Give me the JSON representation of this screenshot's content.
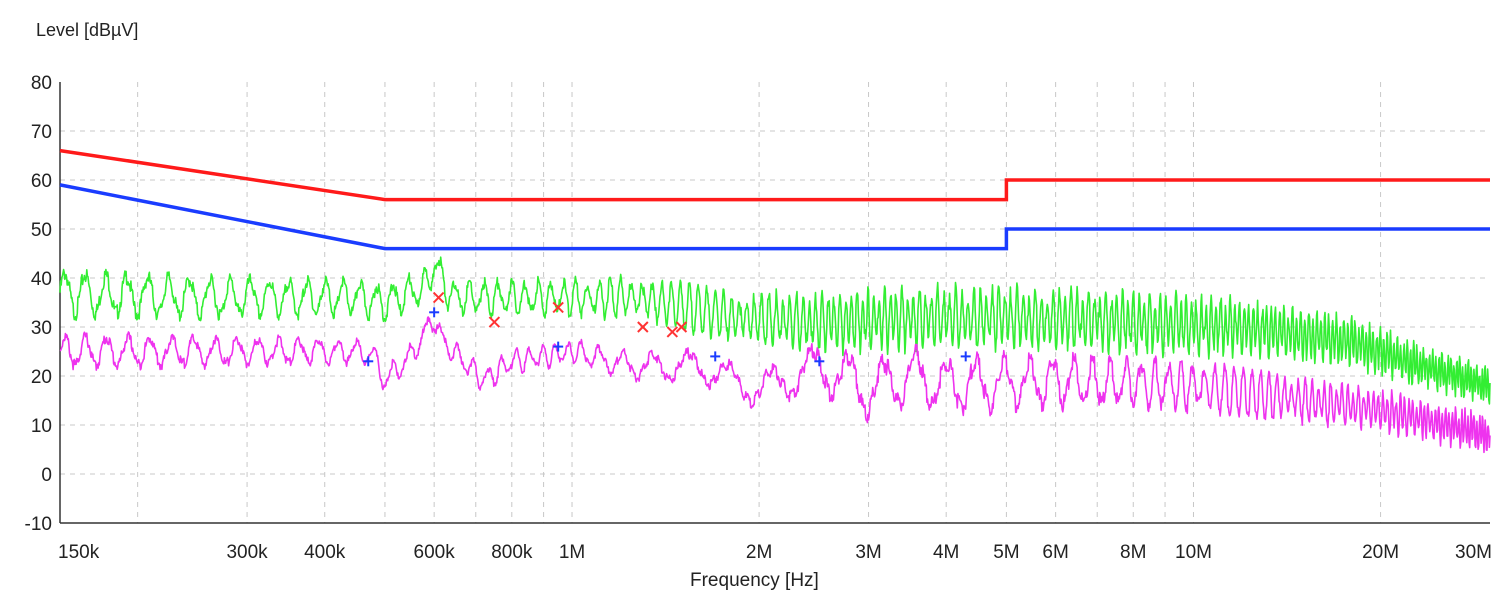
{
  "chart_data": {
    "type": "line",
    "ylabel": "Level [dBµV]",
    "xlabel": "Frequency [Hz]",
    "x_scale": "log",
    "xlim_hz": [
      150000,
      30000000
    ],
    "ylim": [
      -10,
      80
    ],
    "grid": true,
    "y_ticks": [
      80,
      70,
      60,
      50,
      40,
      30,
      20,
      10,
      0,
      -10
    ],
    "x_ticks": [
      {
        "hz": 150000,
        "label": "150k"
      },
      {
        "hz": 300000,
        "label": "300k"
      },
      {
        "hz": 400000,
        "label": "400k"
      },
      {
        "hz": 600000,
        "label": "600k"
      },
      {
        "hz": 800000,
        "label": "800k"
      },
      {
        "hz": 1000000,
        "label": "1M"
      },
      {
        "hz": 2000000,
        "label": "2M"
      },
      {
        "hz": 3000000,
        "label": "3M"
      },
      {
        "hz": 4000000,
        "label": "4M"
      },
      {
        "hz": 5000000,
        "label": "5M"
      },
      {
        "hz": 6000000,
        "label": "6M"
      },
      {
        "hz": 8000000,
        "label": "8M"
      },
      {
        "hz": 10000000,
        "label": "10M"
      },
      {
        "hz": 20000000,
        "label": "20M"
      },
      {
        "hz": 30000000,
        "label": "30M"
      }
    ],
    "x_minor_gridlines_hz": [
      200000,
      500000,
      700000,
      900000,
      7000000,
      9000000
    ],
    "series": [
      {
        "color": "#ff1a1a",
        "style": "limit",
        "points": [
          [
            150000,
            66
          ],
          [
            500000,
            56
          ],
          [
            5000000,
            56
          ],
          [
            5000000,
            60
          ],
          [
            30000000,
            60
          ]
        ]
      },
      {
        "color": "#1a3cff",
        "style": "limit",
        "points": [
          [
            150000,
            59
          ],
          [
            500000,
            46
          ],
          [
            5000000,
            46
          ],
          [
            5000000,
            50
          ],
          [
            30000000,
            50
          ]
        ]
      },
      {
        "color": "#33ee33",
        "style": "trace",
        "envelope": [
          [
            150000,
            37
          ],
          [
            250000,
            36
          ],
          [
            450000,
            36
          ],
          [
            500000,
            35
          ],
          [
            580000,
            38
          ],
          [
            600000,
            43
          ],
          [
            640000,
            36
          ],
          [
            900000,
            36
          ],
          [
            1300000,
            36
          ],
          [
            1800000,
            32
          ],
          [
            2500000,
            31
          ],
          [
            4000000,
            32
          ],
          [
            5000000,
            32
          ],
          [
            8000000,
            31
          ],
          [
            12000000,
            30
          ],
          [
            18000000,
            27
          ],
          [
            22000000,
            23
          ],
          [
            30000000,
            18
          ]
        ],
        "ripple_db": [
          [
            150000,
            4
          ],
          [
            500000,
            3
          ],
          [
            1000000,
            3
          ],
          [
            3000000,
            5
          ],
          [
            10000000,
            5
          ],
          [
            30000000,
            3
          ]
        ],
        "ripple_period_hz": [
          [
            150000,
            11000
          ],
          [
            500000,
            30000
          ],
          [
            1000000,
            45000
          ],
          [
            3000000,
            60000
          ],
          [
            30000000,
            300000
          ]
        ]
      },
      {
        "color": "#ee33ee",
        "style": "trace",
        "envelope": [
          [
            150000,
            25
          ],
          [
            450000,
            25
          ],
          [
            480000,
            24
          ],
          [
            500000,
            19
          ],
          [
            550000,
            24
          ],
          [
            600000,
            32
          ],
          [
            620000,
            27
          ],
          [
            720000,
            19
          ],
          [
            800000,
            23
          ],
          [
            1000000,
            25
          ],
          [
            1250000,
            22
          ],
          [
            1600000,
            22
          ],
          [
            2000000,
            17
          ],
          [
            2500000,
            22
          ],
          [
            3000000,
            17
          ],
          [
            3500000,
            20
          ],
          [
            4000000,
            18
          ],
          [
            6000000,
            19
          ],
          [
            10000000,
            18
          ],
          [
            20000000,
            13
          ],
          [
            30000000,
            8
          ]
        ],
        "ripple_db": [
          [
            150000,
            3
          ],
          [
            500000,
            2
          ],
          [
            1000000,
            2
          ],
          [
            2000000,
            3
          ],
          [
            3000000,
            5
          ],
          [
            10000000,
            4
          ],
          [
            30000000,
            3
          ]
        ],
        "ripple_period_hz": [
          [
            150000,
            11000
          ],
          [
            1000000,
            45000
          ],
          [
            2000000,
            320000
          ],
          [
            3000000,
            380000
          ],
          [
            5000000,
            500000
          ],
          [
            30000000,
            300000
          ]
        ]
      }
    ],
    "markers": [
      {
        "shape": "x",
        "color": "#ff3333",
        "points": [
          [
            610000,
            36
          ],
          [
            750000,
            31
          ],
          [
            950000,
            34
          ],
          [
            1300000,
            30
          ],
          [
            1450000,
            29
          ],
          [
            1500000,
            30
          ]
        ]
      },
      {
        "shape": "+",
        "color": "#1a3cff",
        "points": [
          [
            470000,
            23
          ],
          [
            600000,
            33
          ],
          [
            950000,
            26
          ],
          [
            1700000,
            24
          ],
          [
            2500000,
            23
          ],
          [
            4300000,
            24
          ]
        ]
      }
    ]
  }
}
